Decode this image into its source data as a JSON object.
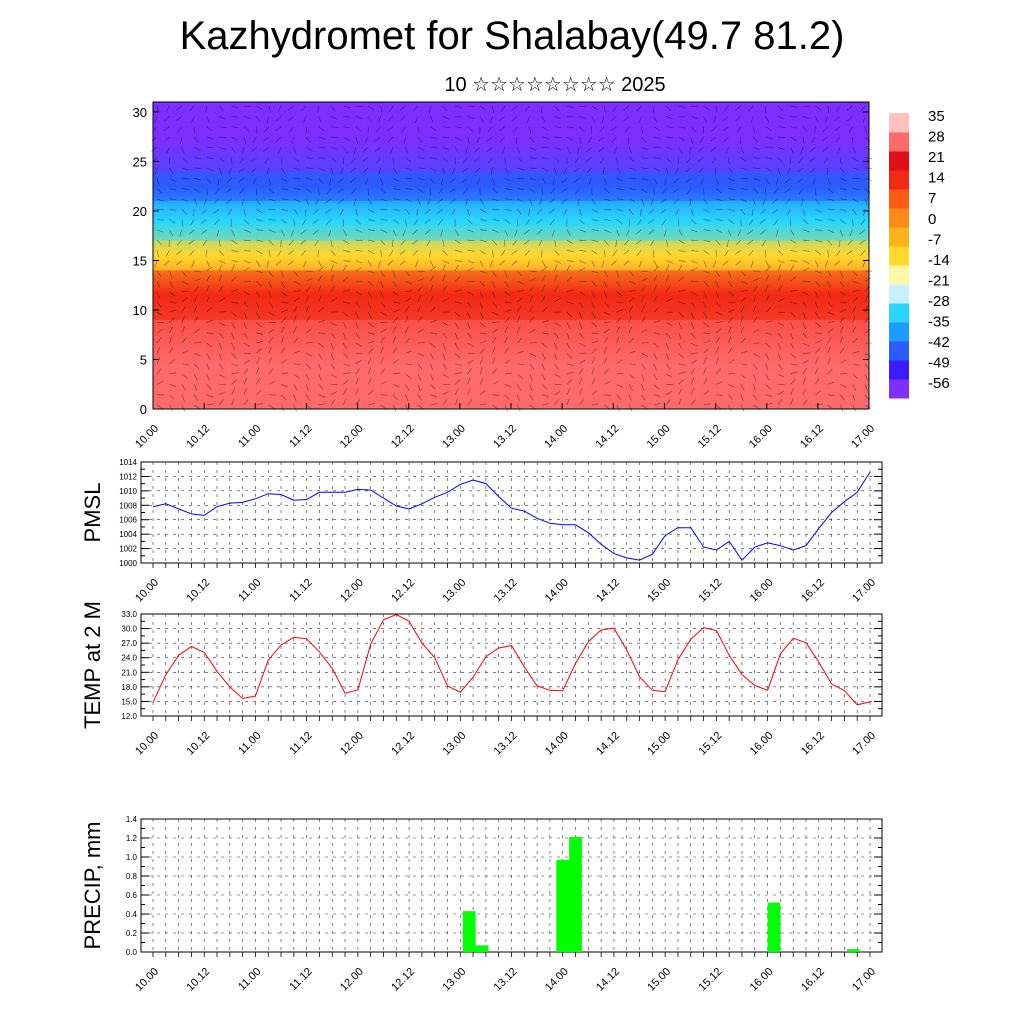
{
  "page": {
    "title": "Kazhydromet for Shalabay(49.7 81.2)",
    "subtitle": "10 ☆☆☆☆☆☆☆☆ 2025"
  },
  "colors": {
    "pmsl_line": "#0000ff",
    "temp_line": "#ff0000",
    "precip_bar": "#00ff00",
    "colorbar": [
      "#7f2fff",
      "#3a1cff",
      "#2a5cff",
      "#1c9cff",
      "#29d6ff",
      "#c8f0ff",
      "#fff7a8",
      "#ffd92e",
      "#ffb21a",
      "#ff8a1a",
      "#ff5a16",
      "#f22a14",
      "#e01018",
      "#ff6a6a",
      "#ffc0c0"
    ]
  },
  "chart_data": [
    {
      "type": "heatmap",
      "title": "",
      "xlabel": "",
      "ylabel": "",
      "ylim": [
        0,
        31
      ],
      "y_ticks": [
        "0",
        "5",
        "10",
        "15",
        "20",
        "25",
        "30"
      ],
      "x_ticks": [
        "10.00",
        "10.12",
        "11.00",
        "11.12",
        "12.00",
        "12.12",
        "13.00",
        "13.12",
        "14.00",
        "14.12",
        "15.00",
        "15.12",
        "16.00",
        "16.12",
        "17.00"
      ],
      "colorbar_labels": [
        "35",
        "28",
        "21",
        "14",
        "7",
        "0",
        "-7",
        "-14",
        "-21",
        "-28",
        "-35",
        "-42",
        "-49",
        "-56"
      ],
      "layers": [
        {
          "level_range": [
            0,
            9
          ],
          "temperature": 25
        },
        {
          "level_range": [
            9,
            14
          ],
          "temperature": 12
        },
        {
          "level_range": [
            14,
            17
          ],
          "temperature": -10
        },
        {
          "level_range": [
            17,
            21
          ],
          "temperature": -28
        },
        {
          "level_range": [
            21,
            24
          ],
          "temperature": -45
        },
        {
          "level_range": [
            24,
            31
          ],
          "temperature": -56
        }
      ]
    },
    {
      "type": "line",
      "ylabel": "PMSL",
      "ylim": [
        1000,
        1014
      ],
      "y_ticks": [
        "1000",
        "1002",
        "1004",
        "1006",
        "1008",
        "1010",
        "1012",
        "1014"
      ],
      "x_ticks": [
        "10.00",
        "10.12",
        "11.00",
        "11.12",
        "12.00",
        "12.12",
        "13.00",
        "13.12",
        "14.00",
        "14.12",
        "15.00",
        "15.12",
        "16.00",
        "16.12",
        "17.00"
      ],
      "series": [
        {
          "values": [
            1007.8,
            1008.2,
            1007.5,
            1006.8,
            1006.6,
            1007.8,
            1008.3,
            1008.4,
            1008.9,
            1009.6,
            1009.5,
            1008.7,
            1008.8,
            1009.8,
            1009.8,
            1009.8,
            1010.2,
            1010.1,
            1009.0,
            1007.9,
            1007.5,
            1008.2,
            1009.1,
            1009.8,
            1010.9,
            1011.5,
            1011.0,
            1009.2,
            1007.6,
            1007.2,
            1006.2,
            1005.5,
            1005.3,
            1005.3,
            1004.2,
            1002.6,
            1001.3,
            1000.7,
            1000.4,
            1001.2,
            1003.8,
            1004.9,
            1004.9,
            1002.2,
            1001.8,
            1003.0,
            1000.4,
            1002.2,
            1002.8,
            1002.4,
            1001.8,
            1002.4,
            1004.8,
            1007.0,
            1008.5,
            1009.8,
            1012.6
          ]
        }
      ]
    },
    {
      "type": "line",
      "ylabel": "TEMP at 2 M",
      "ylim": [
        12,
        33
      ],
      "y_ticks": [
        "12.0",
        "15.0",
        "18.0",
        "21.0",
        "24.0",
        "27.0",
        "30.0",
        "33.0"
      ],
      "x_ticks": [
        "10.00",
        "10.12",
        "11.00",
        "11.12",
        "12.00",
        "12.12",
        "13.00",
        "13.12",
        "14.00",
        "14.12",
        "15.00",
        "15.12",
        "16.00",
        "16.12",
        "17.00"
      ],
      "series": [
        {
          "values": [
            14.8,
            20.5,
            24.5,
            26.3,
            25.1,
            21.2,
            18.0,
            15.6,
            16.1,
            23.5,
            26.6,
            28.2,
            27.9,
            25.2,
            21.8,
            16.7,
            17.4,
            26.8,
            31.8,
            32.9,
            31.5,
            27.0,
            24.0,
            18.2,
            16.9,
            20.0,
            24.2,
            26.0,
            26.5,
            22.1,
            18.2,
            17.3,
            17.2,
            22.8,
            27.3,
            29.7,
            30.1,
            25.6,
            20.1,
            17.3,
            17.0,
            23.6,
            27.8,
            30.2,
            29.6,
            24.5,
            20.5,
            18.3,
            17.3,
            24.8,
            28.0,
            27.1,
            23.1,
            18.6,
            17.2,
            14.3,
            14.9
          ]
        }
      ]
    },
    {
      "type": "bar",
      "ylabel": "PRECIP, mm",
      "ylim": [
        0,
        1.4
      ],
      "y_ticks": [
        "0.0",
        "0.2",
        "0.4",
        "0.6",
        "0.8",
        "1.0",
        "1.2",
        "1.4"
      ],
      "x_ticks": [
        "10.00",
        "10.12",
        "11.00",
        "11.12",
        "12.00",
        "12.12",
        "13.00",
        "13.12",
        "14.00",
        "14.12",
        "15.00",
        "15.12",
        "16.00",
        "16.12",
        "17.00"
      ],
      "bars": [
        {
          "x": 24.7,
          "value": 0.43
        },
        {
          "x": 25.7,
          "value": 0.07
        },
        {
          "x": 32.0,
          "value": 0.97
        },
        {
          "x": 33.0,
          "value": 1.21
        },
        {
          "x": 48.5,
          "value": 0.52
        },
        {
          "x": 54.7,
          "value": 0.03
        }
      ]
    }
  ]
}
